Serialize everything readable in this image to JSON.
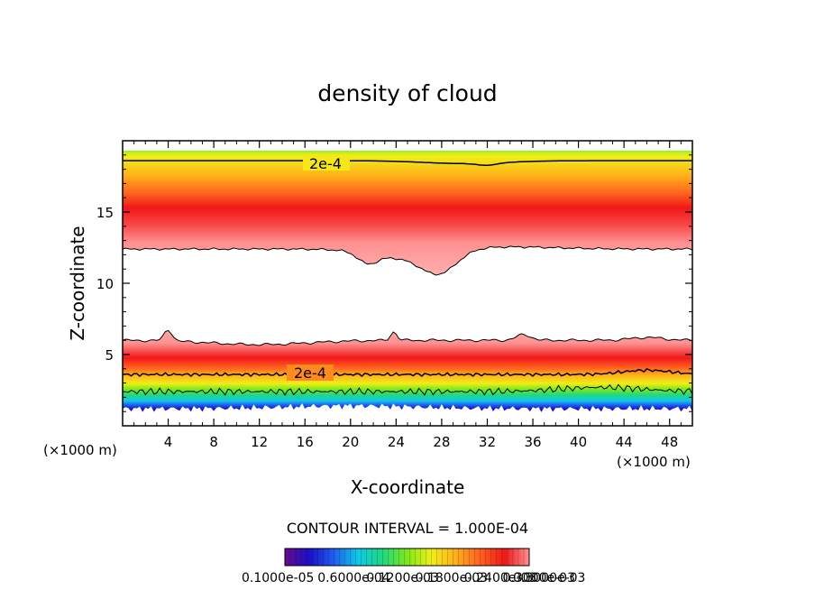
{
  "chart_data": {
    "type": "heatmap",
    "title": "density of cloud",
    "xlabel": "X-coordinate",
    "ylabel": "Z-coordinate",
    "x_unit": "(×1000 m)",
    "y_unit": "(×1000 m)",
    "xlim": [
      0,
      50
    ],
    "ylim": [
      0,
      20
    ],
    "x_ticks": [
      4,
      8,
      12,
      16,
      20,
      24,
      28,
      32,
      36,
      40,
      44,
      48
    ],
    "y_ticks": [
      5,
      10,
      15
    ],
    "contour_interval_text": "CONTOUR INTERVAL = 1.000E-04",
    "contour_labels": [
      "2e-4",
      "2e-4"
    ],
    "colorbar_tick_labels": [
      "0.1000e-05",
      "0.6000e-04",
      "0.1200e-03",
      "0.1800e-03",
      "0.2400e-03",
      "0.3000e-03"
    ],
    "colorbar_end_label": "0.3000e-03",
    "colormap": [
      "#6a0a8e",
      "#1a10c8",
      "#1f5ef0",
      "#10c8e8",
      "#20d880",
      "#7ee81a",
      "#f0ee18",
      "#ffae1a",
      "#ff6020",
      "#f01818",
      "#ff9090"
    ],
    "upper_cloud": {
      "top_z": 19.0,
      "core_z": 15.0,
      "contour_2e-4_z": 18.6,
      "base_z": 12.4,
      "base_dip_min": {
        "x": 28.0,
        "z": 10.3
      }
    },
    "lower_cloud": {
      "top_z": 6.0,
      "core_z": 5.0,
      "contour_2e-4_z": 3.6,
      "base_z": 1.2
    }
  }
}
